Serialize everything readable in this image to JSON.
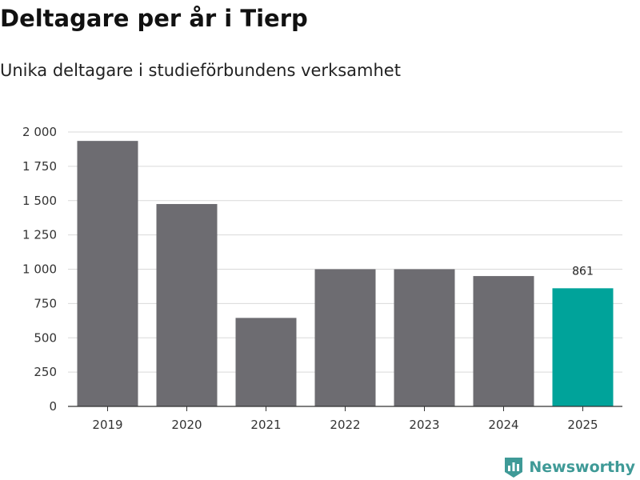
{
  "header": {
    "title": "Deltagare per år i Tierp",
    "subtitle": "Unika deltagare i studieförbundens verksamhet"
  },
  "brand": {
    "name": "Newsworthy",
    "color": "#3f9a97"
  },
  "colors": {
    "bar": "#6d6c71",
    "highlight": "#00a39a",
    "grid": "#d9d9d9",
    "axis": "#333333"
  },
  "chart_data": {
    "type": "bar",
    "title": "Deltagare per år i Tierp",
    "subtitle": "Unika deltagare i studieförbundens verksamhet",
    "categories": [
      "2019",
      "2020",
      "2021",
      "2022",
      "2023",
      "2024",
      "2025"
    ],
    "values": [
      1935,
      1475,
      645,
      1000,
      1000,
      950,
      861
    ],
    "highlight_index": 6,
    "data_labels": [
      {
        "index": 6,
        "text": "861"
      }
    ],
    "xlabel": "",
    "ylabel": "",
    "ylim": [
      0,
      2000
    ],
    "yticks": [
      0,
      250,
      500,
      750,
      1000,
      1250,
      1500,
      1750,
      2000
    ],
    "ytick_labels": [
      "0",
      "250",
      "500",
      "750",
      "1 000",
      "1 250",
      "1 500",
      "1 750",
      "2 000"
    ],
    "grid": true,
    "legend": "none"
  }
}
